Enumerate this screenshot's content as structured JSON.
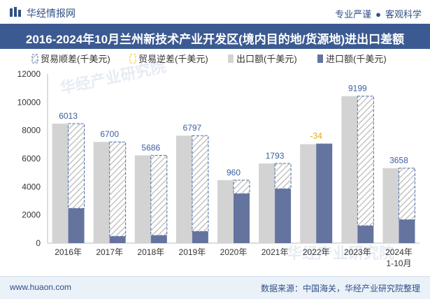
{
  "header": {
    "brand": "华经情报网",
    "tagline_left": "专业严谨",
    "tagline_right": "客观科学"
  },
  "title": "2016-2024年10月兰州新技术产业开发区(境内目的地/货源地)进出口差额",
  "footer": {
    "url": "www.huaon.com",
    "source": "数据来源：中国海关，华经产业研究院整理"
  },
  "watermark": "华经产业研究院",
  "colors": {
    "export": "#d3d3d3",
    "import": "#64749e",
    "surplus_stroke": "#4d6fa8",
    "deficit_stroke": "#f2c200",
    "label": "#3a5fa0",
    "deficit_label": "#e6a800"
  },
  "chart_data": {
    "type": "bar",
    "categories": [
      "2016年",
      "2017年",
      "2018年",
      "2019年",
      "2020年",
      "2021年",
      "2022年",
      "2023年",
      "2024年\n1-10月"
    ],
    "series": [
      {
        "name": "出口额(千美元)",
        "values": [
          8480,
          7180,
          6230,
          7630,
          4470,
          5650,
          7020,
          10430,
          5320
        ]
      },
      {
        "name": "进口额(千美元)",
        "values": [
          2467,
          480,
          544,
          833,
          3510,
          3857,
          7054,
          1231,
          1662
        ]
      }
    ],
    "balance": [
      6013,
      6700,
      5686,
      6797,
      960,
      1793,
      -34,
      9199,
      3658
    ],
    "balance_labels": [
      "6013",
      "6700",
      "5686",
      "6797",
      "960",
      "1793",
      "-34",
      "9199",
      "3658"
    ],
    "legend": [
      {
        "label": "贸易顺差(千美元)",
        "icon": "surplus"
      },
      {
        "label": "贸易逆差(千美元)",
        "icon": "deficit"
      },
      {
        "label": "出口额(千美元)",
        "icon": "export"
      },
      {
        "label": "进口额(千美元)",
        "icon": "import"
      }
    ],
    "yticks": [
      "0",
      "2000",
      "4000",
      "6000",
      "8000",
      "10000",
      "12000"
    ],
    "ylim": [
      0,
      12000
    ],
    "legend_position": "top-left",
    "grid": false
  }
}
